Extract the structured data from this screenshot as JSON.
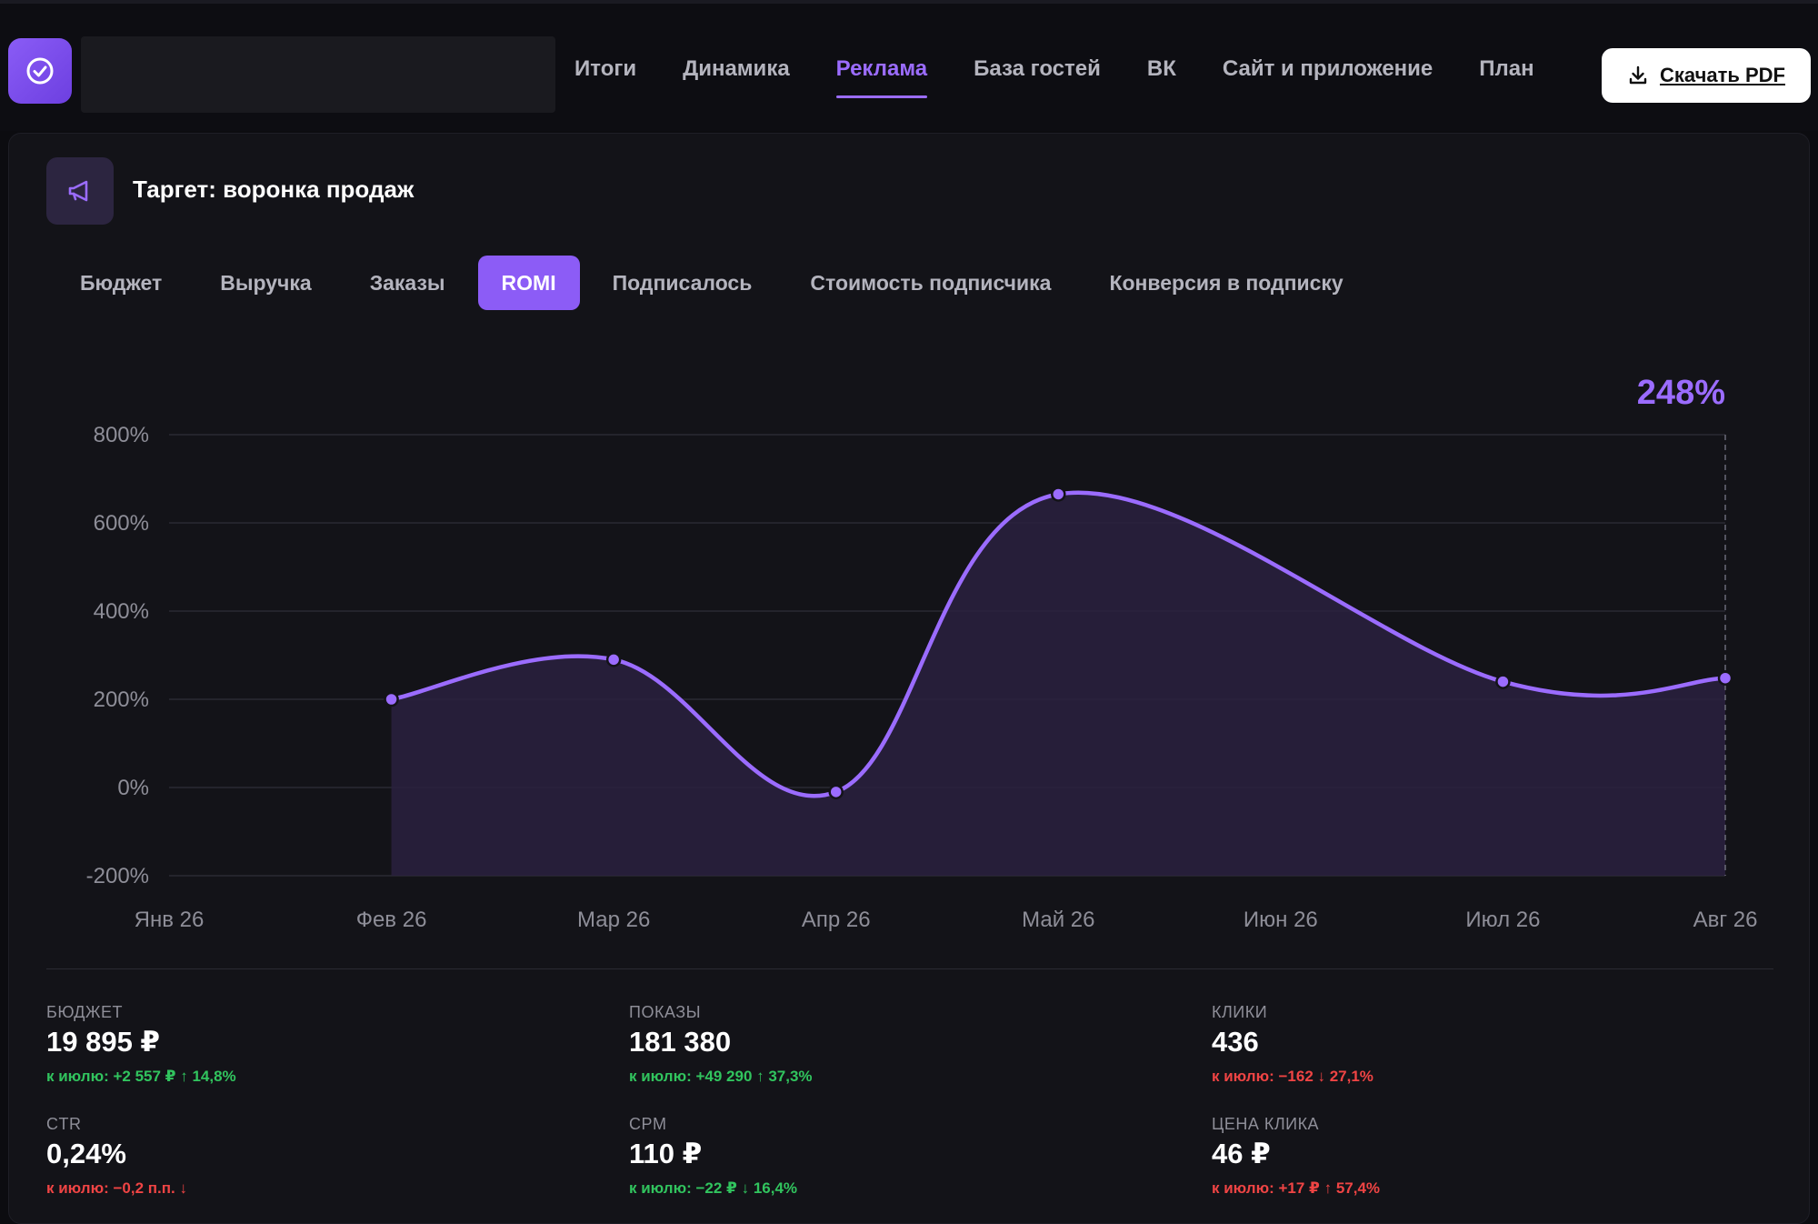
{
  "nav": {
    "items": [
      {
        "label": "Итоги",
        "active": false
      },
      {
        "label": "Динамика",
        "active": false
      },
      {
        "label": "Реклама",
        "active": true
      },
      {
        "label": "База гостей",
        "active": false
      },
      {
        "label": "ВК",
        "active": false
      },
      {
        "label": "Сайт и приложение",
        "active": false
      },
      {
        "label": "План",
        "active": false
      }
    ],
    "pdf_label": "Скачать PDF"
  },
  "card": {
    "title": "Таргет: воронка продаж",
    "tabs": [
      {
        "label": "Бюджет",
        "active": false
      },
      {
        "label": "Выручка",
        "active": false
      },
      {
        "label": "Заказы",
        "active": false
      },
      {
        "label": "ROMI",
        "active": true
      },
      {
        "label": "Подписалось",
        "active": false
      },
      {
        "label": "Стоимость подписчика",
        "active": false
      },
      {
        "label": "Конверсия в подписку",
        "active": false
      }
    ]
  },
  "chart_data": {
    "type": "area",
    "categories": [
      "Янв 26",
      "Фев 26",
      "Мар 26",
      "Апр 26",
      "Май 26",
      "Июн 26",
      "Июл 26",
      "Авг 26"
    ],
    "series": [
      {
        "values": [
          null,
          200,
          290,
          -10,
          665,
          null,
          240,
          248
        ]
      }
    ],
    "yticks": [
      "800%",
      "600%",
      "400%",
      "200%",
      "0%",
      "-200%"
    ],
    "ylim": [
      -200,
      800
    ],
    "highlight_label": "248%",
    "accent": "#9b6cff",
    "fill": "#2a2140",
    "grid": true
  },
  "metrics": [
    {
      "label": "БЮДЖЕТ",
      "value": "19 895 ₽",
      "delta": "к июлю: +2 557 ₽ ↑ 14,8%",
      "trend": "pos"
    },
    {
      "label": "ПОКАЗЫ",
      "value": "181 380",
      "delta": "к июлю: +49 290 ↑ 37,3%",
      "trend": "pos"
    },
    {
      "label": "КЛИКИ",
      "value": "436",
      "delta": "к июлю: −162 ↓ 27,1%",
      "trend": "neg"
    },
    {
      "label": "CTR",
      "value": "0,24%",
      "delta": "к июлю: −0,2 п.п. ↓",
      "trend": "neg"
    },
    {
      "label": "CPM",
      "value": "110 ₽",
      "delta": "к июлю: −22 ₽ ↓ 16,4%",
      "trend": "pos"
    },
    {
      "label": "ЦЕНА КЛИКА",
      "value": "46 ₽",
      "delta": "к июлю: +17 ₽ ↑ 57,4%",
      "trend": "neg"
    }
  ]
}
